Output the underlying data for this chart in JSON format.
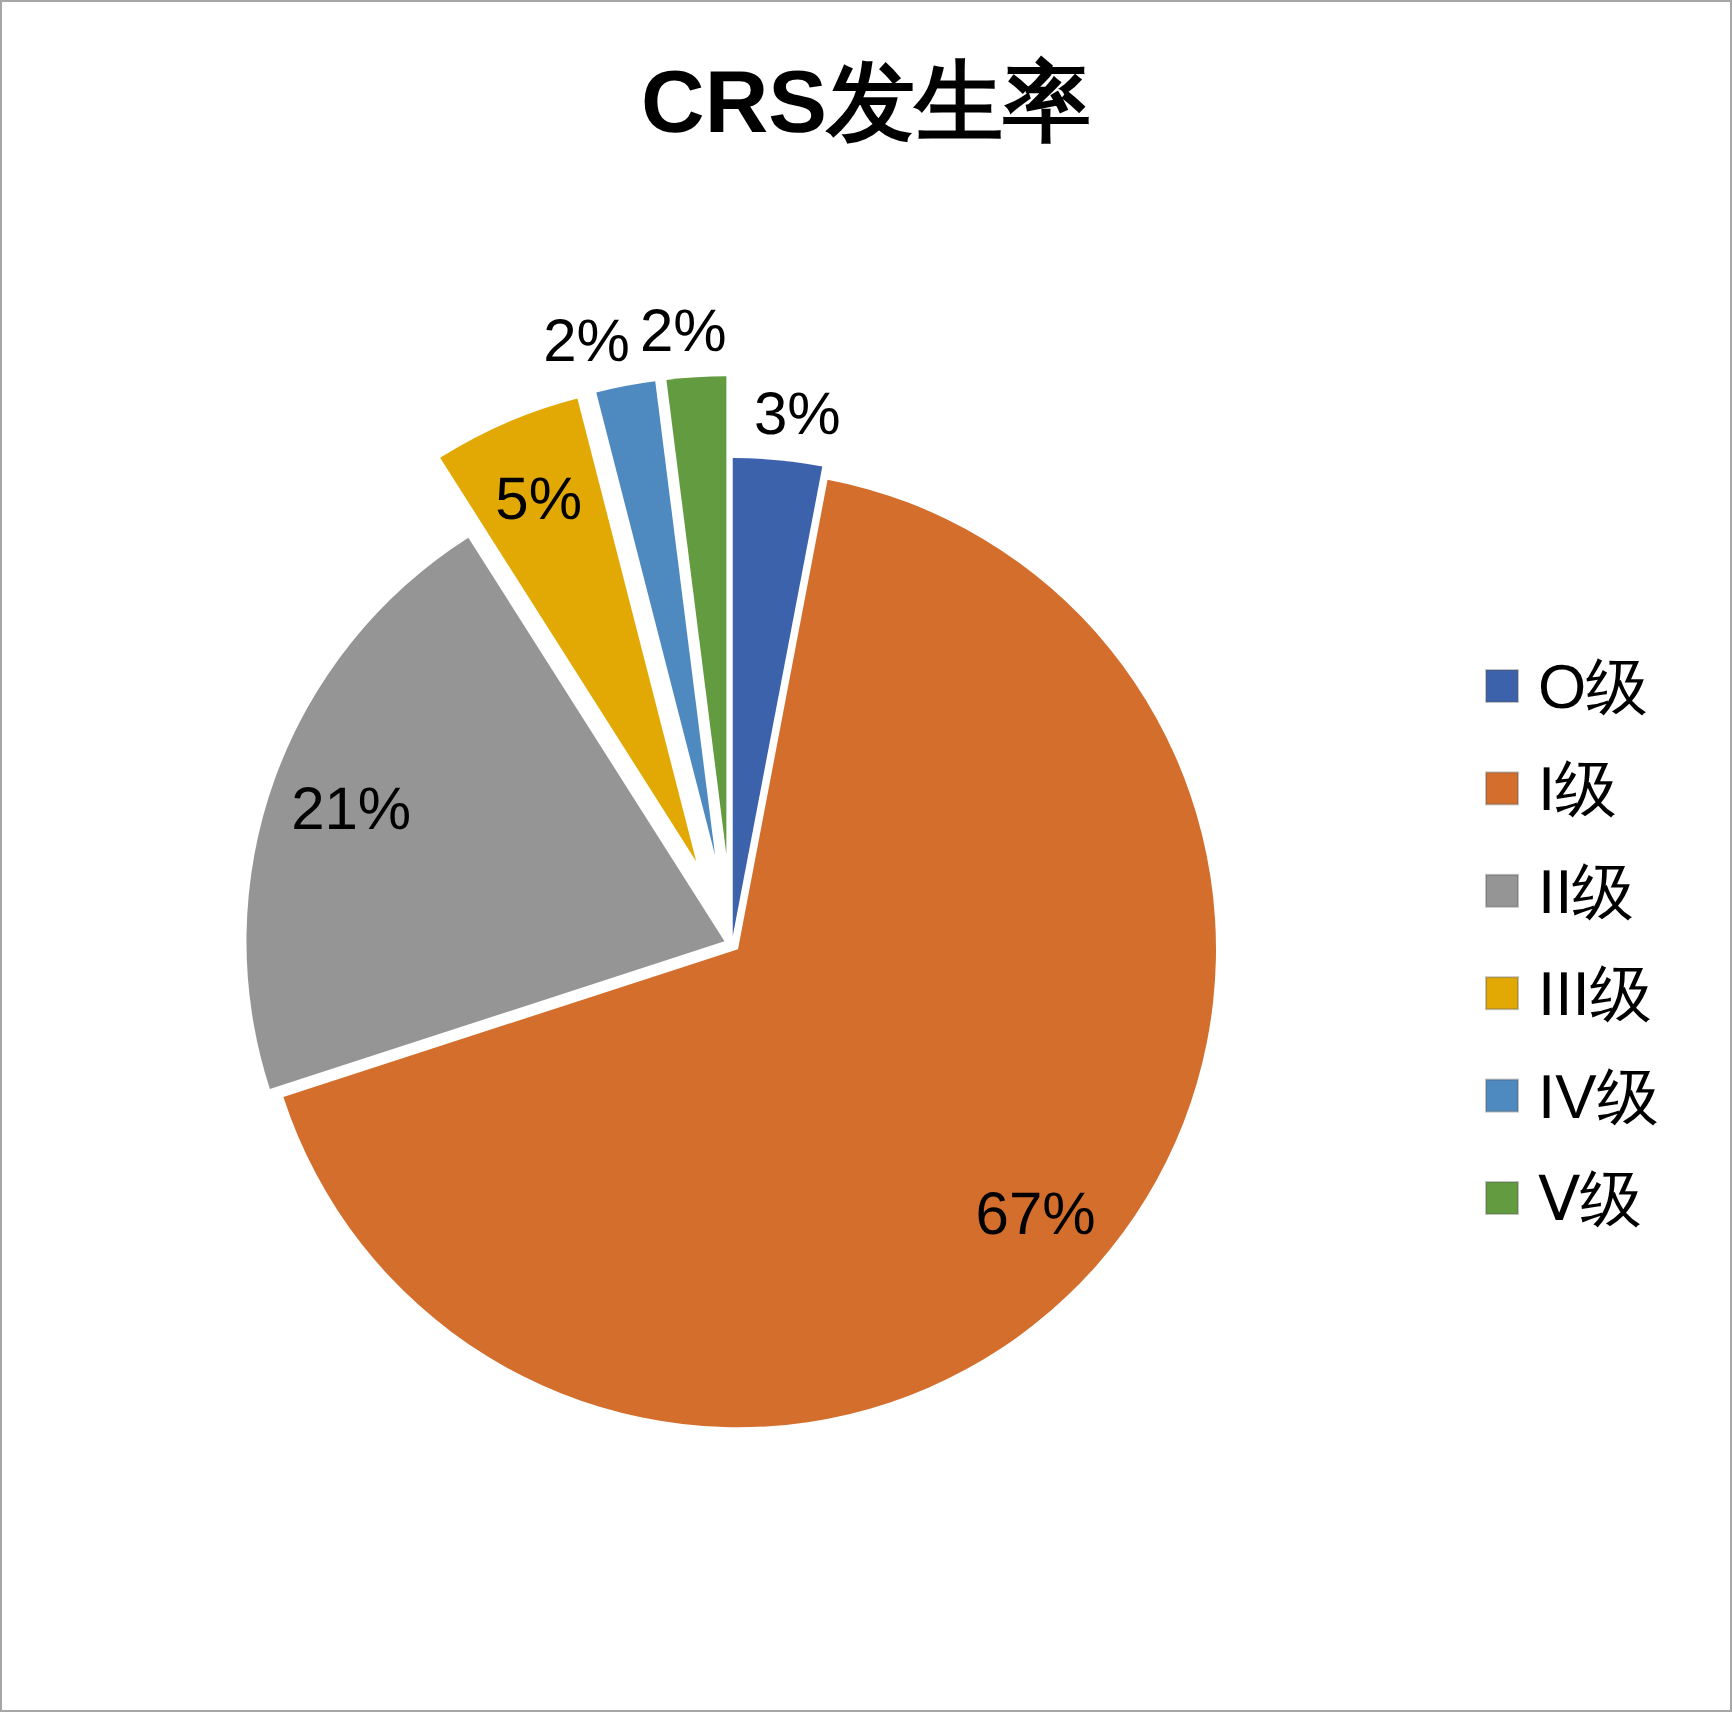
{
  "chart_data": {
    "type": "pie",
    "title": "CRS发生率",
    "categories": [
      "O级",
      "I级",
      "II级",
      "III级",
      "IV级",
      "Ⅴ级"
    ],
    "values": [
      3,
      67,
      21,
      5,
      2,
      2
    ],
    "colors": [
      "#3c62ac",
      "#d36e2c",
      "#959595",
      "#e2a905",
      "#4e89bf",
      "#639b40"
    ],
    "value_labels": [
      "3%",
      "67%",
      "21%",
      "5%",
      "2%",
      "2%"
    ],
    "legend": "right"
  }
}
